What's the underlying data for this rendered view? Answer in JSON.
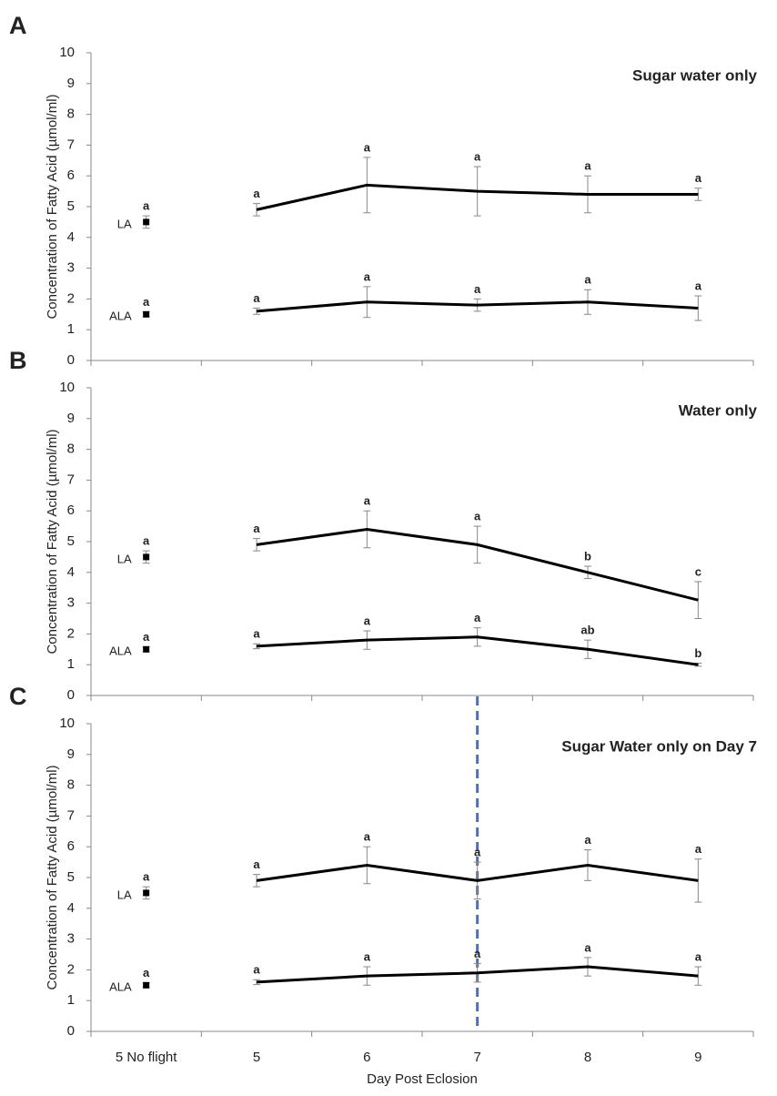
{
  "chart_data": [
    {
      "type": "line",
      "panel": "A",
      "title": "Sugar water only",
      "ylabel": "Concentration of Fatty Acid (µmol/ml)",
      "ylim": [
        0,
        10
      ],
      "yticks": [
        0,
        1,
        2,
        3,
        4,
        5,
        6,
        7,
        8,
        9,
        10
      ],
      "series": [
        {
          "name": "LA",
          "color": "#000000",
          "values": [
            4.5,
            4.9,
            5.7,
            5.5,
            5.4,
            5.4
          ],
          "errors": [
            0.2,
            0.2,
            0.9,
            0.8,
            0.6,
            0.2
          ],
          "letters": [
            "a",
            "a",
            "a",
            "a",
            "a",
            "a"
          ]
        },
        {
          "name": "ALA",
          "color": "#000000",
          "values": [
            1.5,
            1.6,
            1.9,
            1.8,
            1.9,
            1.7
          ],
          "errors": [
            0.08,
            0.1,
            0.5,
            0.2,
            0.4,
            0.4
          ],
          "letters": [
            "a",
            "a",
            "a",
            "a",
            "a",
            "a"
          ]
        }
      ]
    },
    {
      "type": "line",
      "panel": "B",
      "title": "Water only",
      "ylabel": "Concentration of Fatty Acid (µmol/ml)",
      "ylim": [
        0,
        10
      ],
      "yticks": [
        0,
        1,
        2,
        3,
        4,
        5,
        6,
        7,
        8,
        9,
        10
      ],
      "series": [
        {
          "name": "LA",
          "color": "#000000",
          "values": [
            4.5,
            4.9,
            5.4,
            4.9,
            4.0,
            3.1
          ],
          "errors": [
            0.2,
            0.2,
            0.6,
            0.6,
            0.2,
            0.6
          ],
          "letters": [
            "a",
            "a",
            "a",
            "a",
            "b",
            "c"
          ]
        },
        {
          "name": "ALA",
          "color": "#000000",
          "values": [
            1.5,
            1.6,
            1.8,
            1.9,
            1.5,
            1.0
          ],
          "errors": [
            0.08,
            0.08,
            0.3,
            0.3,
            0.3,
            0.05
          ],
          "letters": [
            "a",
            "a",
            "a",
            "a",
            "ab",
            "b"
          ]
        }
      ]
    },
    {
      "type": "line",
      "panel": "C",
      "title": "Sugar Water only on Day 7",
      "ylabel": "Concentration of Fatty Acid (µmol/ml)",
      "xlabel": "Day Post Eclosion",
      "categories": [
        "5 No flight",
        "5",
        "6",
        "7",
        "8",
        "9"
      ],
      "ylim": [
        0,
        10
      ],
      "yticks": [
        0,
        1,
        2,
        3,
        4,
        5,
        6,
        7,
        8,
        9,
        10
      ],
      "vline_category": "7",
      "vline_color": "#4472c4",
      "series": [
        {
          "name": "LA",
          "color": "#000000",
          "values": [
            4.5,
            4.9,
            5.4,
            4.9,
            5.4,
            4.9
          ],
          "errors": [
            0.2,
            0.2,
            0.6,
            0.6,
            0.5,
            0.7
          ],
          "letters": [
            "a",
            "a",
            "a",
            "a",
            "a",
            "a"
          ]
        },
        {
          "name": "ALA",
          "color": "#000000",
          "values": [
            1.5,
            1.6,
            1.8,
            1.9,
            2.1,
            1.8
          ],
          "errors": [
            0.08,
            0.08,
            0.3,
            0.3,
            0.3,
            0.3
          ],
          "letters": [
            "a",
            "a",
            "a",
            "a",
            "a",
            "a"
          ]
        }
      ]
    }
  ]
}
